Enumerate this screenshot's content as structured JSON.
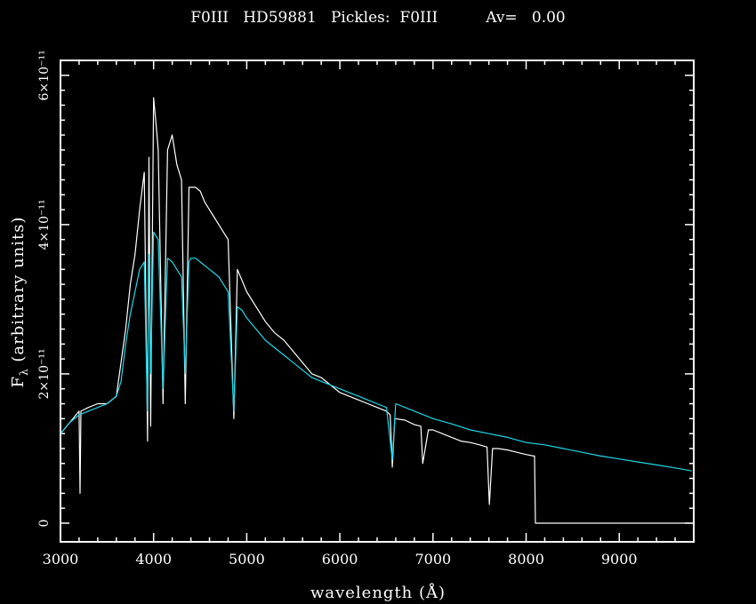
{
  "chart_data": {
    "type": "line",
    "title": "F0III   HD59881   Pickles:  F0III          Av=   0.00",
    "xlabel": "wavelength (Å)",
    "ylabel_main": "F",
    "ylabel_sub": "λ",
    "ylabel_rest": " (arbitrary units)",
    "xlim": [
      3000,
      9800
    ],
    "ylim": [
      -2.5e-12,
      6.2e-11
    ],
    "x_ticks": [
      {
        "value": 3000,
        "label": "3000"
      },
      {
        "value": 4000,
        "label": "4000"
      },
      {
        "value": 5000,
        "label": "5000"
      },
      {
        "value": 6000,
        "label": "6000"
      },
      {
        "value": 7000,
        "label": "7000"
      },
      {
        "value": 8000,
        "label": "8000"
      },
      {
        "value": 9000,
        "label": "9000"
      }
    ],
    "y_ticks": [
      {
        "value": 0,
        "label": "0"
      },
      {
        "value": 2e-11,
        "label": "2×10⁻¹¹"
      },
      {
        "value": 4e-11,
        "label": "4×10⁻¹¹"
      },
      {
        "value": 6e-11,
        "label": "6×10⁻¹¹"
      }
    ],
    "grid": false,
    "series": [
      {
        "color": "#ffffff",
        "x": [
          3000,
          3100,
          3200,
          3210,
          3220,
          3300,
          3400,
          3500,
          3600,
          3700,
          3750,
          3800,
          3850,
          3900,
          3935,
          3950,
          3968,
          4000,
          4030,
          4050,
          4101,
          4150,
          4200,
          4250,
          4300,
          4340,
          4380,
          4400,
          4450,
          4500,
          4550,
          4600,
          4650,
          4700,
          4750,
          4800,
          4861,
          4900,
          4950,
          5000,
          5100,
          5200,
          5300,
          5400,
          5500,
          5600,
          5700,
          5800,
          5900,
          6000,
          6100,
          6200,
          6300,
          6400,
          6500,
          6540,
          6563,
          6590,
          6700,
          6800,
          6870,
          6890,
          6950,
          7000,
          7100,
          7200,
          7300,
          7400,
          7500,
          7580,
          7605,
          7640,
          7700,
          7800,
          7900,
          8000,
          8080,
          8090,
          8100,
          9000,
          9780
        ],
        "y": [
          1.2e-11,
          1.35e-11,
          1.5e-11,
          4e-12,
          1.5e-11,
          1.55e-11,
          1.6e-11,
          1.6e-11,
          1.7e-11,
          2.6e-11,
          3.2e-11,
          3.6e-11,
          4.2e-11,
          4.7e-11,
          1.1e-11,
          4.9e-11,
          1.3e-11,
          5.7e-11,
          5.3e-11,
          5e-11,
          1.6e-11,
          5e-11,
          5.2e-11,
          4.8e-11,
          4.6e-11,
          1.6e-11,
          4.5e-11,
          4.5e-11,
          4.5e-11,
          4.45e-11,
          4.3e-11,
          4.2e-11,
          4.1e-11,
          4e-11,
          3.9e-11,
          3.8e-11,
          1.4e-11,
          3.4e-11,
          3.25e-11,
          3.1e-11,
          2.9e-11,
          2.7e-11,
          2.55e-11,
          2.45e-11,
          2.3e-11,
          2.15e-11,
          2e-11,
          1.95e-11,
          1.85e-11,
          1.75e-11,
          1.7e-11,
          1.65e-11,
          1.6e-11,
          1.55e-11,
          1.5e-11,
          1.45e-11,
          7.5e-12,
          1.4e-11,
          1.38e-11,
          1.32e-11,
          1.3e-11,
          8e-12,
          1.25e-11,
          1.25e-11,
          1.2e-11,
          1.15e-11,
          1.1e-11,
          1.08e-11,
          1.05e-11,
          1.02e-11,
          2.5e-12,
          1e-11,
          1e-11,
          9.8e-12,
          9.5e-12,
          9.2e-12,
          9e-12,
          9e-12,
          0.0,
          0.0,
          0.0
        ]
      },
      {
        "color": "#1fd8e8",
        "x": [
          3000,
          3100,
          3200,
          3300,
          3400,
          3500,
          3600,
          3650,
          3700,
          3750,
          3800,
          3850,
          3900,
          3933,
          3950,
          3968,
          4000,
          4050,
          4101,
          4150,
          4200,
          4250,
          4300,
          4340,
          4380,
          4400,
          4450,
          4500,
          4550,
          4600,
          4650,
          4700,
          4750,
          4800,
          4861,
          4900,
          4950,
          5000,
          5100,
          5200,
          5300,
          5400,
          5500,
          5600,
          5700,
          5800,
          5900,
          6000,
          6100,
          6200,
          6300,
          6400,
          6500,
          6563,
          6600,
          6700,
          6800,
          6900,
          7000,
          7200,
          7400,
          7600,
          7800,
          8000,
          8200,
          8400,
          8600,
          8800,
          9000,
          9200,
          9400,
          9600,
          9780
        ],
        "y": [
          1.2e-11,
          1.35e-11,
          1.45e-11,
          1.5e-11,
          1.55e-11,
          1.6e-11,
          1.7e-11,
          1.9e-11,
          2.4e-11,
          2.8e-11,
          3.1e-11,
          3.4e-11,
          3.5e-11,
          1.5e-11,
          3.6e-11,
          2e-11,
          3.9e-11,
          3.8e-11,
          1.8e-11,
          3.55e-11,
          3.5e-11,
          3.4e-11,
          3.3e-11,
          2e-11,
          3.5e-11,
          3.55e-11,
          3.55e-11,
          3.5e-11,
          3.45e-11,
          3.4e-11,
          3.35e-11,
          3.3e-11,
          3.2e-11,
          3.1e-11,
          1.5e-11,
          2.9e-11,
          2.85e-11,
          2.75e-11,
          2.6e-11,
          2.45e-11,
          2.35e-11,
          2.25e-11,
          2.15e-11,
          2.05e-11,
          1.95e-11,
          1.9e-11,
          1.85e-11,
          1.8e-11,
          1.75e-11,
          1.7e-11,
          1.65e-11,
          1.6e-11,
          1.55e-11,
          8.5e-12,
          1.6e-11,
          1.55e-11,
          1.5e-11,
          1.45e-11,
          1.4e-11,
          1.33e-11,
          1.25e-11,
          1.2e-11,
          1.15e-11,
          1.08e-11,
          1.05e-11,
          1e-11,
          9.5e-12,
          9e-12,
          8.6e-12,
          8.2e-12,
          7.8e-12,
          7.4e-12,
          7e-12
        ]
      }
    ]
  }
}
